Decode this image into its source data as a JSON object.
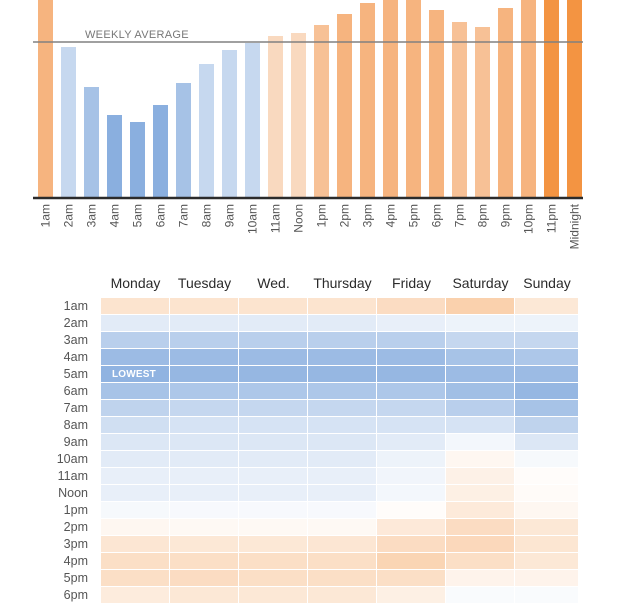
{
  "chart_data": [
    {
      "type": "bar",
      "title": "",
      "xlabel": "",
      "ylabel": "",
      "categories": [
        "1am",
        "2am",
        "3am",
        "4am",
        "5am",
        "6am",
        "7am",
        "8am",
        "9am",
        "10am",
        "11am",
        "Noon",
        "1pm",
        "2pm",
        "3pm",
        "4pm",
        "5pm",
        "6pm",
        "7pm",
        "8pm",
        "9pm",
        "10pm",
        "11pm",
        "Midnight"
      ],
      "values": [
        205,
        151,
        111,
        83,
        76,
        93,
        115,
        134,
        148,
        155,
        162,
        165,
        173,
        184,
        195,
        205,
        205,
        188,
        176,
        171,
        190,
        205,
        205,
        205
      ],
      "ylim": [
        0,
        198
      ],
      "reference_line": {
        "label": "WEEKLY AVERAGE",
        "value": 156
      },
      "colors": {
        "above_light": "#f9d9bf",
        "above_mid": "#f6b47f",
        "above_strong": "#f39442",
        "below_light": "#c6d8ef",
        "below_mid": "#a6c2e6",
        "below_strong": "#8aafdf",
        "baseline": "#2b2b2b",
        "average_line": "#808080"
      }
    },
    {
      "type": "heatmap",
      "title": "",
      "columns": [
        "Monday",
        "Tuesday",
        "Wed.",
        "Thursday",
        "Friday",
        "Saturday",
        "Sunday"
      ],
      "rows": [
        "1am",
        "2am",
        "3am",
        "4am",
        "5am",
        "6am",
        "7am",
        "8am",
        "9am",
        "10am",
        "11am",
        "Noon",
        "1pm",
        "2pm",
        "3pm",
        "4pm",
        "5pm",
        "6pm"
      ],
      "values": [
        [
          0.35,
          0.35,
          0.35,
          0.35,
          0.45,
          0.6,
          0.3
        ],
        [
          -0.25,
          -0.25,
          -0.25,
          -0.25,
          -0.2,
          -0.15,
          -0.15
        ],
        [
          -0.6,
          -0.6,
          -0.6,
          -0.6,
          -0.6,
          -0.5,
          -0.5
        ],
        [
          -0.85,
          -0.85,
          -0.85,
          -0.85,
          -0.85,
          -0.75,
          -0.7
        ],
        [
          -0.95,
          -0.9,
          -0.9,
          -0.9,
          -0.9,
          -0.85,
          -0.85
        ],
        [
          -0.75,
          -0.7,
          -0.7,
          -0.7,
          -0.7,
          -0.8,
          -0.9
        ],
        [
          -0.55,
          -0.5,
          -0.5,
          -0.5,
          -0.5,
          -0.6,
          -0.75
        ],
        [
          -0.4,
          -0.35,
          -0.35,
          -0.35,
          -0.35,
          -0.35,
          -0.55
        ],
        [
          -0.3,
          -0.3,
          -0.3,
          -0.3,
          -0.25,
          -0.1,
          -0.3
        ],
        [
          -0.25,
          -0.25,
          -0.25,
          -0.25,
          -0.15,
          0.1,
          -0.08
        ],
        [
          -0.2,
          -0.2,
          -0.2,
          -0.2,
          -0.12,
          0.18,
          0.04
        ],
        [
          -0.2,
          -0.2,
          -0.2,
          -0.2,
          -0.1,
          0.2,
          0.05
        ],
        [
          -0.08,
          -0.07,
          -0.07,
          -0.07,
          0.04,
          0.27,
          0.1
        ],
        [
          0.1,
          0.08,
          0.08,
          0.08,
          0.28,
          0.45,
          0.3
        ],
        [
          0.32,
          0.3,
          0.3,
          0.32,
          0.45,
          0.5,
          0.33
        ],
        [
          0.42,
          0.42,
          0.42,
          0.42,
          0.55,
          0.42,
          0.3
        ],
        [
          0.42,
          0.45,
          0.42,
          0.42,
          0.42,
          0.15,
          0.15
        ],
        [
          0.25,
          0.3,
          0.3,
          0.3,
          0.2,
          -0.05,
          -0.05
        ]
      ],
      "scale": {
        "min": -1,
        "max": 1,
        "low_color": "#8aafdf",
        "mid_color": "#ffffff",
        "high_color": "#f39442"
      },
      "annotations": [
        {
          "row": "5am",
          "column": "Monday",
          "text": "LOWEST"
        }
      ]
    }
  ]
}
